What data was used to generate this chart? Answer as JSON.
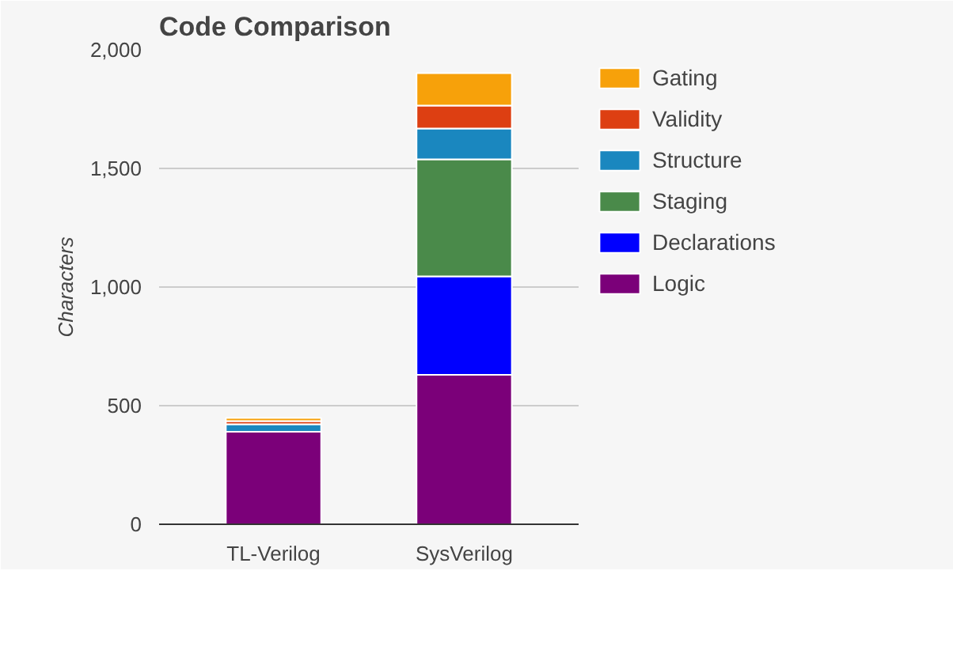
{
  "chart_data": {
    "type": "bar",
    "title": "Code Comparison",
    "ylabel": "Characters",
    "stacked": true,
    "categories": [
      "TL-Verilog",
      "SysVerilog"
    ],
    "series": [
      {
        "name": "Logic",
        "color": "#7b0079",
        "values": [
          390,
          630
        ]
      },
      {
        "name": "Declarations",
        "color": "#0000ff",
        "values": [
          0,
          415
        ]
      },
      {
        "name": "Staging",
        "color": "#4a8a4a",
        "values": [
          0,
          493
        ]
      },
      {
        "name": "Structure",
        "color": "#1a87bf",
        "values": [
          32,
          130
        ]
      },
      {
        "name": "Validity",
        "color": "#dd3f12",
        "values": [
          13,
          97
        ]
      },
      {
        "name": "Gating",
        "color": "#f7a10a",
        "values": [
          13,
          137
        ]
      }
    ],
    "ylim": [
      0,
      2000
    ],
    "yticks": [
      {
        "value": 0,
        "label": "0"
      },
      {
        "value": 500,
        "label": "500"
      },
      {
        "value": 1000,
        "label": "1,000"
      },
      {
        "value": 1500,
        "label": "1,500"
      },
      {
        "value": 2000,
        "label": "2,000"
      }
    ],
    "grid": "y",
    "legend": "right"
  }
}
